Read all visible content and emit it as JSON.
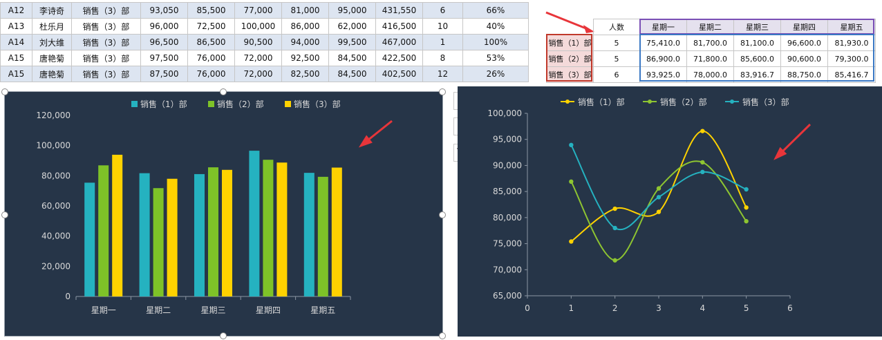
{
  "sheet": {
    "rows": [
      [
        "A12",
        "李诗奇",
        "销售（3）部",
        "93,050",
        "85,500",
        "77,000",
        "81,000",
        "95,000",
        "431,550",
        "6",
        "66%"
      ],
      [
        "A13",
        "杜乐月",
        "销售（3）部",
        "96,000",
        "72,500",
        "100,000",
        "86,000",
        "62,000",
        "416,500",
        "10",
        "40%"
      ],
      [
        "A14",
        "刘大维",
        "销售（3）部",
        "96,500",
        "86,500",
        "90,500",
        "94,000",
        "99,500",
        "467,000",
        "1",
        "100%"
      ],
      [
        "A15",
        "唐艳菊",
        "销售（3）部",
        "97,500",
        "76,000",
        "72,000",
        "92,500",
        "84,500",
        "422,500",
        "8",
        "53%"
      ],
      [
        "A15",
        "唐艳菊",
        "销售（3）部",
        "87,500",
        "76,000",
        "72,000",
        "82,500",
        "84,500",
        "402,500",
        "12",
        "26%"
      ]
    ]
  },
  "summary": {
    "headers": [
      "人数",
      "星期一",
      "星期二",
      "星期三",
      "星期四",
      "星期五"
    ],
    "rows": [
      {
        "label": "销售（1）部",
        "cells": [
          "5",
          "75,410.0",
          "81,700.0",
          "81,100.0",
          "96,600.0",
          "81,930.0"
        ]
      },
      {
        "label": "销售（2）部",
        "cells": [
          "5",
          "86,900.0",
          "71,800.0",
          "85,600.0",
          "90,600.0",
          "79,300.0"
        ]
      },
      {
        "label": "销售（3）部",
        "cells": [
          "6",
          "93,925.0",
          "78,000.0",
          "83,916.7",
          "88,750.0",
          "85,416.7"
        ]
      }
    ]
  },
  "colors": {
    "chart_bg": "#263548",
    "series1": "#25b2c0",
    "series2": "#7ec228",
    "series3": "#ffd200",
    "line1": "#ffd200",
    "line2": "#8ec531",
    "line3": "#25b2c0",
    "arrow": "#e8353a",
    "axis_text": "#d9d9d9",
    "grid": "#3d4a5c"
  },
  "side_buttons": [
    {
      "icon": "plus-icon"
    },
    {
      "icon": "brush-icon"
    },
    {
      "icon": "filter-icon"
    }
  ],
  "chart_data": [
    {
      "type": "bar",
      "categories": [
        "星期一",
        "星期二",
        "星期三",
        "星期四",
        "星期五"
      ],
      "series": [
        {
          "name": "销售（1）部",
          "values": [
            75410,
            81700,
            81100,
            96600,
            81930
          ]
        },
        {
          "name": "销售（2）部",
          "values": [
            86900,
            71800,
            85600,
            90600,
            79300
          ]
        },
        {
          "name": "销售（3）部",
          "values": [
            93925,
            78000,
            83916.7,
            88750,
            85416.7
          ]
        }
      ],
      "yticks": [
        "0",
        "20,000",
        "40,000",
        "60,000",
        "80,000",
        "100,000",
        "120,000"
      ],
      "ylim": [
        0,
        120000
      ],
      "legend": "top"
    },
    {
      "type": "scatter",
      "x": [
        1,
        2,
        3,
        4,
        5
      ],
      "series": [
        {
          "name": "销售（1）部",
          "values": [
            75410,
            81700,
            81100,
            96600,
            81930
          ]
        },
        {
          "name": "销售（2）部",
          "values": [
            86900,
            71800,
            85600,
            90600,
            79300
          ]
        },
        {
          "name": "销售（3）部",
          "values": [
            93925,
            78000,
            83916.7,
            88750,
            85416.7
          ]
        }
      ],
      "xticks": [
        "0",
        "1",
        "2",
        "3",
        "4",
        "5",
        "6"
      ],
      "xlim": [
        0,
        6
      ],
      "yticks": [
        "65,000",
        "70,000",
        "75,000",
        "80,000",
        "85,000",
        "90,000",
        "95,000",
        "100,000"
      ],
      "ylim": [
        65000,
        100000
      ],
      "legend": "top",
      "smooth": true
    }
  ]
}
